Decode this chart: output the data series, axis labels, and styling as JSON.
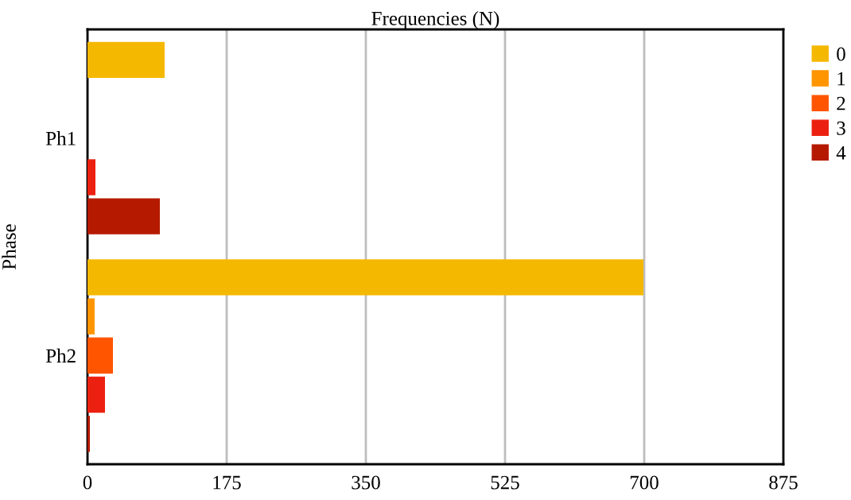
{
  "chart_data": {
    "type": "bar",
    "orientation": "horizontal",
    "xlabel": "Frequencies (N)",
    "ylabel": "Phase",
    "categories": [
      "Ph1",
      "Ph2"
    ],
    "series": [
      {
        "name": "0",
        "color": "#f5b800",
        "values": [
          97,
          699
        ]
      },
      {
        "name": "1",
        "color": "#ff9500",
        "values": [
          0,
          9
        ]
      },
      {
        "name": "2",
        "color": "#ff5500",
        "values": [
          0,
          32
        ]
      },
      {
        "name": "3",
        "color": "#ec2010",
        "values": [
          10,
          22
        ]
      },
      {
        "name": "4",
        "color": "#b51a00",
        "values": [
          91,
          3
        ]
      }
    ],
    "xlim": [
      0,
      875
    ],
    "xticks": [
      0,
      175,
      350,
      525,
      700,
      875
    ],
    "grid": "x",
    "legend": "right"
  }
}
